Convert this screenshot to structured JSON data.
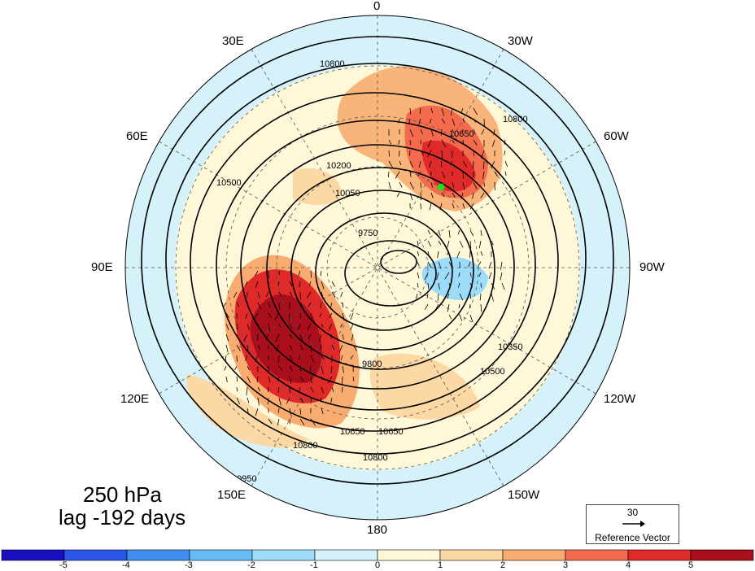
{
  "map": {
    "level_label": "250 hPa",
    "lag_label": "lag -192 days",
    "longitude_labels": [
      {
        "text": "0",
        "lon": 0
      },
      {
        "text": "30W",
        "lon": -30
      },
      {
        "text": "60W",
        "lon": -60
      },
      {
        "text": "90W",
        "lon": -90
      },
      {
        "text": "120W",
        "lon": -120
      },
      {
        "text": "150W",
        "lon": -150
      },
      {
        "text": "180",
        "lon": 180
      },
      {
        "text": "150E",
        "lon": 150
      },
      {
        "text": "120E",
        "lon": 120
      },
      {
        "text": "90E",
        "lon": 90
      },
      {
        "text": "60E",
        "lon": 60
      },
      {
        "text": "30E",
        "lon": 30
      }
    ],
    "contour_labels": [
      "10800",
      "10650",
      "10500",
      "10350",
      "10200",
      "10050",
      "9750",
      "9800",
      "10950"
    ],
    "marker_color": "#22dd22"
  },
  "reference_vector": {
    "magnitude_label": "30",
    "label": "Reference Vector"
  },
  "colorbar": {
    "tick_labels": [
      "-5",
      "-4",
      "-3",
      "-2",
      "-1",
      "0",
      "1",
      "2",
      "3",
      "4",
      "5"
    ],
    "colors": [
      "#1a0fbf",
      "#2a55e6",
      "#3f8ef0",
      "#66bdf5",
      "#9cdcf8",
      "#d5f2fa",
      "#fff8d8",
      "#fcd9a4",
      "#f8ac70",
      "#f36b4c",
      "#e02a2a",
      "#a80e1c"
    ]
  }
}
